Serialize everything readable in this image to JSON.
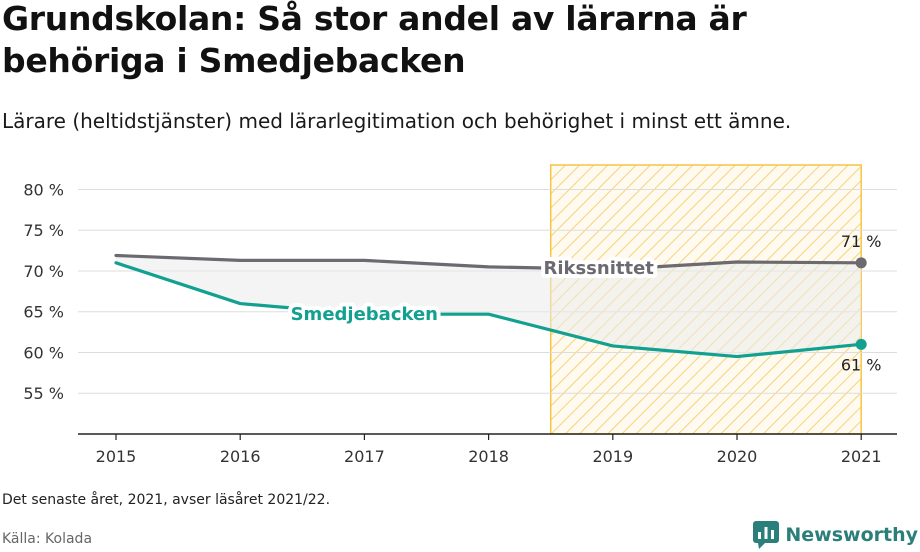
{
  "title": "Grundskolan: Så stor andel av lärarna är behöriga i Smedjebacken",
  "subtitle": "Lärare (heltidstjänster) med lärarlegitimation och behörighet i minst ett ämne.",
  "note": "Det senaste året, 2021, avser läsåret 2021/22.",
  "source": "Källa: Kolada",
  "brand": {
    "name": "Newsworthy",
    "icon": "bar-chart-speech-icon",
    "color": "#2a7f7a"
  },
  "chart_data": {
    "type": "line",
    "x": [
      "2015",
      "2016",
      "2017",
      "2018",
      "2019",
      "2020",
      "2021"
    ],
    "y_ticks": [
      "55 %",
      "60 %",
      "65 %",
      "70 %",
      "75 %",
      "80 %"
    ],
    "ylim": [
      50,
      83
    ],
    "highlight_range": [
      "2019",
      "2021"
    ],
    "highlight_color": "#f5c542",
    "series": [
      {
        "name": "Rikssnittet",
        "color": "#6b6a70",
        "values": [
          71.9,
          71.3,
          71.3,
          70.5,
          70.2,
          71.1,
          71.0
        ],
        "end_label": "71 %"
      },
      {
        "name": "Smedjebacken",
        "color": "#12a090",
        "values": [
          71.0,
          66.0,
          64.7,
          64.7,
          60.8,
          59.5,
          61.0
        ],
        "end_label": "61 %"
      }
    ]
  }
}
